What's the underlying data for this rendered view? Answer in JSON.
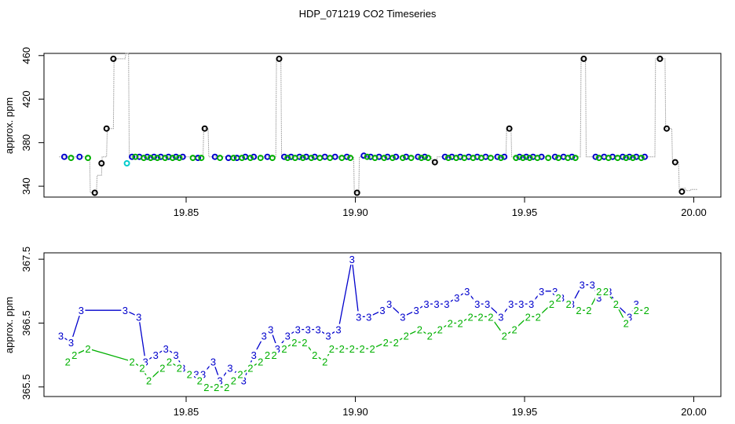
{
  "title": "HDP_071219  CO2 Timeseries",
  "colors": {
    "blue": "#0000cc",
    "green": "#00b000",
    "cyan": "#00cccc",
    "black": "#000000",
    "gray": "#999999"
  },
  "chart_data": [
    {
      "type": "scatter",
      "ylabel": "approx. ppm",
      "xlim": [
        19.808,
        20.008
      ],
      "ylim": [
        330,
        462
      ],
      "xticks": [
        19.85,
        19.9,
        19.95,
        20.0
      ],
      "xtick_labels": [
        "19.85",
        "19.90",
        "19.95",
        "20.00"
      ],
      "yticks": [
        340,
        380,
        420,
        460
      ],
      "ytick_labels": [
        "340",
        "380",
        "420",
        "460"
      ],
      "trace": {
        "x": [
          19.8125,
          19.8128,
          19.8215,
          19.8217,
          19.8235,
          19.8237,
          19.825,
          19.8252,
          19.8265,
          19.8267,
          19.8285,
          19.8287,
          19.832,
          19.8322,
          19.833,
          19.8332,
          19.855,
          19.8552,
          19.8565,
          19.8567,
          19.8765,
          19.8767,
          19.878,
          19.8782,
          19.8995,
          19.8997,
          19.901,
          19.9012,
          19.9225,
          19.9227,
          19.924,
          19.9242,
          19.9445,
          19.9447,
          19.946,
          19.9462,
          19.9665,
          19.9667,
          19.968,
          19.9682,
          19.9885,
          19.9887,
          19.9915,
          19.9917,
          19.9935,
          19.9937,
          19.9955,
          19.9957,
          19.9975,
          19.9977,
          19.999,
          19.9992,
          20.001
        ],
        "y": [
          367,
          367,
          367,
          334,
          334,
          350,
          350,
          367,
          367,
          393,
          393,
          457,
          457,
          462,
          462,
          367,
          367,
          393,
          393,
          367,
          367,
          457,
          457,
          367,
          367,
          334,
          334,
          367,
          367,
          362,
          362,
          367,
          367,
          393,
          393,
          367,
          367,
          457,
          457,
          367,
          367,
          457,
          457,
          393,
          393,
          362,
          362,
          338,
          338,
          336,
          336,
          337,
          337
        ]
      },
      "series": [
        {
          "name": "",
          "color": "blue",
          "x": [
            19.814,
            19.8185,
            19.834,
            19.8362,
            19.8385,
            19.8405,
            19.8425,
            19.8448,
            19.847,
            19.849,
            19.8535,
            19.8585,
            19.8625,
            19.865,
            19.8675,
            19.87,
            19.874,
            19.879,
            19.881,
            19.8835,
            19.8855,
            19.888,
            19.891,
            19.894,
            19.8975,
            19.9025,
            19.9045,
            19.907,
            19.9095,
            19.912,
            19.915,
            19.9185,
            19.9205,
            19.9265,
            19.9285,
            19.931,
            19.9335,
            19.936,
            19.9385,
            19.942,
            19.944,
            19.9485,
            19.9505,
            19.9525,
            19.955,
            19.959,
            19.9615,
            19.964,
            19.971,
            19.9735,
            19.976,
            19.979,
            19.981,
            19.983,
            19.9855
          ],
          "y": [
            367,
            367,
            367,
            367,
            367,
            367,
            367,
            367,
            367,
            367,
            366,
            367,
            366,
            366,
            367,
            367,
            367,
            367,
            367,
            367,
            367,
            367,
            367,
            367,
            367,
            368,
            367,
            367,
            367,
            367,
            367,
            367,
            367,
            367,
            367,
            367,
            367,
            367,
            367,
            367,
            367,
            367,
            367,
            367,
            367,
            367,
            367,
            367,
            367,
            367,
            367,
            367,
            367,
            367,
            367
          ]
        },
        {
          "name": "",
          "color": "green",
          "x": [
            19.816,
            19.821,
            19.835,
            19.8375,
            19.8395,
            19.8415,
            19.8438,
            19.846,
            19.848,
            19.852,
            19.8545,
            19.86,
            19.864,
            19.8665,
            19.869,
            19.872,
            19.8755,
            19.88,
            19.8822,
            19.8845,
            19.887,
            19.8895,
            19.8925,
            19.896,
            19.8985,
            19.9035,
            19.9058,
            19.9085,
            19.911,
            19.914,
            19.9165,
            19.9195,
            19.9215,
            19.9275,
            19.9298,
            19.9322,
            19.9348,
            19.9372,
            19.94,
            19.943,
            19.9475,
            19.9495,
            19.9515,
            19.9538,
            19.957,
            19.96,
            19.9628,
            19.965,
            19.972,
            19.9748,
            19.9775,
            19.98,
            19.982,
            19.9845
          ],
          "y": [
            366,
            366,
            367,
            366,
            366,
            366,
            366,
            366,
            366,
            366,
            366,
            366,
            366,
            366,
            366,
            366,
            366,
            366,
            366,
            366,
            366,
            366,
            366,
            366,
            366,
            367,
            366,
            366,
            366,
            366,
            366,
            366,
            366,
            366,
            366,
            366,
            366,
            366,
            366,
            366,
            366,
            366,
            366,
            366,
            366,
            366,
            366,
            366,
            366,
            366,
            366,
            366,
            366,
            366
          ]
        },
        {
          "name": "",
          "color": "cyan",
          "x": [
            19.8325
          ],
          "y": [
            361
          ]
        },
        {
          "name": "",
          "color": "black",
          "x": [
            19.823,
            19.825,
            19.8265,
            19.8285,
            19.8555,
            19.8775,
            19.9005,
            19.9235,
            19.9455,
            19.9675,
            19.99,
            19.992,
            19.9945,
            19.9965
          ],
          "y": [
            334,
            361,
            393,
            457,
            393,
            457,
            334,
            362,
            393,
            457,
            457,
            393,
            362,
            335
          ]
        }
      ]
    },
    {
      "type": "line",
      "ylabel": "approx. ppm",
      "xlim": [
        19.808,
        20.008
      ],
      "ylim": [
        365.35,
        367.6
      ],
      "xticks": [
        19.85,
        19.9,
        19.95,
        20.0
      ],
      "xtick_labels": [
        "19.85",
        "19.90",
        "19.95",
        "20.00"
      ],
      "yticks": [
        365.5,
        366.5,
        367.5
      ],
      "ytick_labels": [
        "365.5",
        "366.5",
        "367.5"
      ],
      "series": [
        {
          "name": "",
          "marker": "3",
          "color": "blue",
          "x": [
            19.813,
            19.816,
            19.819,
            19.832,
            19.836,
            19.838,
            19.841,
            19.844,
            19.847,
            19.849,
            19.853,
            19.855,
            19.858,
            19.86,
            19.863,
            19.865,
            19.867,
            19.87,
            19.873,
            19.875,
            19.877,
            19.88,
            19.883,
            19.886,
            19.889,
            19.892,
            19.895,
            19.899,
            19.901,
            19.904,
            19.908,
            19.91,
            19.914,
            19.918,
            19.921,
            19.924,
            19.927,
            19.93,
            19.933,
            19.936,
            19.939,
            19.943,
            19.946,
            19.949,
            19.952,
            19.955,
            19.959,
            19.961,
            19.964,
            19.967,
            19.97,
            19.972,
            19.975,
            19.977,
            19.981,
            19.983
          ],
          "y": [
            366.3,
            366.2,
            366.7,
            366.7,
            366.6,
            365.9,
            366.0,
            366.1,
            366.0,
            365.8,
            365.7,
            365.7,
            365.9,
            365.6,
            365.8,
            365.7,
            365.6,
            366.0,
            366.3,
            366.4,
            366.1,
            366.3,
            366.4,
            366.4,
            366.4,
            366.3,
            366.4,
            367.5,
            366.6,
            366.6,
            366.7,
            366.8,
            366.6,
            366.7,
            366.8,
            366.8,
            366.8,
            366.9,
            367.0,
            366.8,
            366.8,
            366.6,
            366.8,
            366.8,
            366.8,
            367.0,
            367.0,
            366.9,
            366.8,
            367.1,
            367.1,
            366.9,
            367.0,
            366.8,
            366.6,
            366.8
          ]
        },
        {
          "name": "",
          "marker": "2",
          "color": "green",
          "x": [
            19.815,
            19.817,
            19.821,
            19.834,
            19.837,
            19.839,
            19.843,
            19.845,
            19.848,
            19.851,
            19.854,
            19.856,
            19.859,
            19.862,
            19.864,
            19.866,
            19.869,
            19.872,
            19.874,
            19.876,
            19.879,
            19.882,
            19.885,
            19.888,
            19.891,
            19.893,
            19.896,
            19.899,
            19.902,
            19.905,
            19.909,
            19.912,
            19.915,
            19.919,
            19.922,
            19.925,
            19.928,
            19.931,
            19.934,
            19.937,
            19.94,
            19.944,
            19.947,
            19.951,
            19.954,
            19.958,
            19.96,
            19.963,
            19.966,
            19.969,
            19.972,
            19.974,
            19.977,
            19.98,
            19.983,
            19.986
          ],
          "y": [
            365.9,
            366.0,
            366.1,
            365.9,
            365.8,
            365.6,
            365.8,
            365.9,
            365.8,
            365.7,
            365.6,
            365.5,
            365.5,
            365.5,
            365.6,
            365.7,
            365.8,
            365.9,
            366.0,
            366.0,
            366.1,
            366.2,
            366.2,
            366.0,
            365.9,
            366.1,
            366.1,
            366.1,
            366.1,
            366.1,
            366.2,
            366.2,
            366.3,
            366.4,
            366.3,
            366.4,
            366.5,
            366.5,
            366.6,
            366.6,
            366.6,
            366.3,
            366.4,
            366.6,
            366.6,
            366.8,
            366.9,
            366.8,
            366.7,
            366.7,
            367.0,
            367.0,
            366.8,
            366.5,
            366.7,
            366.7
          ]
        }
      ]
    }
  ]
}
